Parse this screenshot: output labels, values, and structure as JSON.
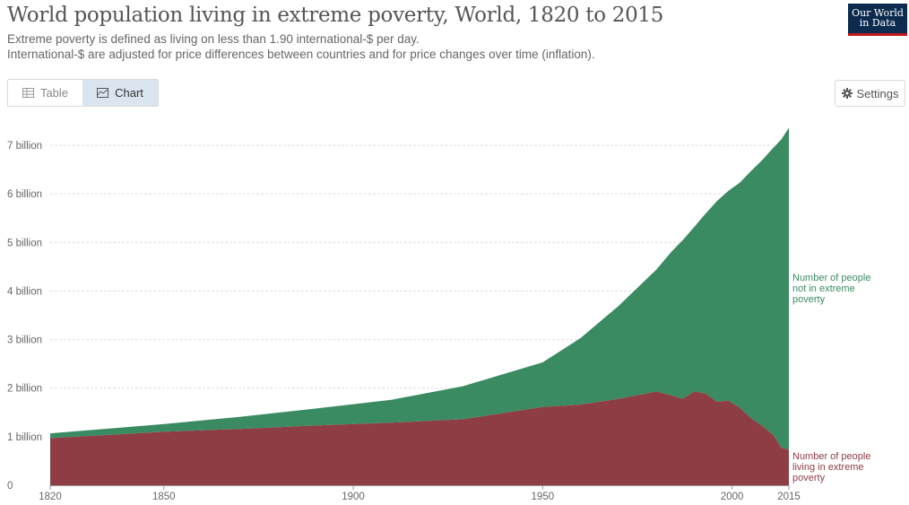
{
  "header": {
    "title": "World population living in extreme poverty, World, 1820 to 2015",
    "subtitle_line1": "Extreme poverty is defined as living on less than 1.90 international-$ per day.",
    "subtitle_line2": "International-$ are adjusted for price differences between countries and for price changes over time (inflation).",
    "logo_line1": "Our World",
    "logo_line2": "in Data"
  },
  "tabs": {
    "table_label": "Table",
    "chart_label": "Chart",
    "active": "Chart"
  },
  "settings_label": "Settings",
  "colors": {
    "not_in_poverty": "#3a8b61",
    "in_poverty": "#8e3d44",
    "grid": "#dddddd"
  },
  "chart_data": {
    "type": "area",
    "stacked": true,
    "x_range": [
      1820,
      2015
    ],
    "y_range": [
      0,
      7000000000
    ],
    "x_ticks": [
      {
        "value": 1820,
        "label": "1820"
      },
      {
        "value": 1850,
        "label": "1850"
      },
      {
        "value": 1900,
        "label": "1900"
      },
      {
        "value": 1950,
        "label": "1950"
      },
      {
        "value": 2000,
        "label": "2000"
      },
      {
        "value": 2015,
        "label": "2015"
      }
    ],
    "y_ticks": [
      {
        "value": 0,
        "label": "0"
      },
      {
        "value": 1000000000,
        "label": "1 billion"
      },
      {
        "value": 2000000000,
        "label": "2 billion"
      },
      {
        "value": 3000000000,
        "label": "3 billion"
      },
      {
        "value": 4000000000,
        "label": "4 billion"
      },
      {
        "value": 5000000000,
        "label": "5 billion"
      },
      {
        "value": 6000000000,
        "label": "6 billion"
      },
      {
        "value": 7000000000,
        "label": "7 billion"
      }
    ],
    "grid": true,
    "legend_placement": "right, inline at series end",
    "x": [
      1820,
      1850,
      1870,
      1890,
      1910,
      1929,
      1950,
      1960,
      1970,
      1980,
      1984,
      1987,
      1990,
      1993,
      1996,
      1999,
      2002,
      2005,
      2008,
      2011,
      2013,
      2015
    ],
    "series": [
      {
        "name": "Number of people living in extreme poverty",
        "color": "#8e3d44",
        "values": [
          970000000,
          1100000000,
          1160000000,
          1230000000,
          1290000000,
          1360000000,
          1610000000,
          1660000000,
          1780000000,
          1930000000,
          1850000000,
          1780000000,
          1930000000,
          1890000000,
          1720000000,
          1740000000,
          1600000000,
          1380000000,
          1220000000,
          1030000000,
          770000000,
          730000000
        ]
      },
      {
        "name": "Number of people not in extreme poverty",
        "color": "#3a8b61",
        "values": [
          100000000,
          160000000,
          250000000,
          350000000,
          470000000,
          680000000,
          920000000,
          1370000000,
          1910000000,
          2510000000,
          2960000000,
          3270000000,
          3390000000,
          3700000000,
          4130000000,
          4320000000,
          4630000000,
          5090000000,
          5480000000,
          5930000000,
          6350000000,
          6630000000
        ]
      }
    ]
  }
}
